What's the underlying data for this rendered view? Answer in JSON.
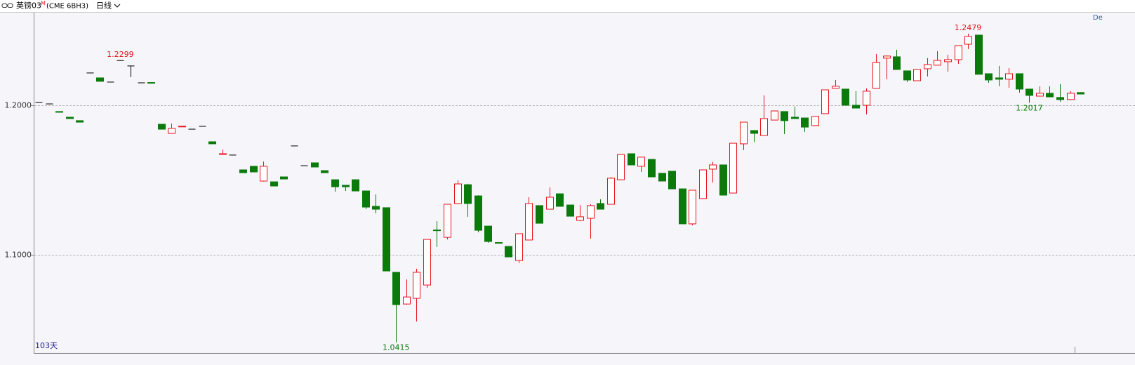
{
  "toolbar": {
    "name": "英镑03",
    "flag": "M",
    "code": "(CME 6BH3)",
    "period": "日线"
  },
  "chart_data": {
    "type": "candlestick",
    "corner_text": "De",
    "period_count": "103天",
    "up_color": "#e8141c",
    "down_color": "#0a7a0a",
    "flat_color": "#000000",
    "ylim": [
      1.0343,
      1.2624
    ],
    "yticks": [
      {
        "value": 1.1,
        "label": "1.1000"
      },
      {
        "value": 1.2,
        "label": "1.2000"
      }
    ],
    "grid": true,
    "annotations": [
      1.2299,
      1.2479,
      1.2017,
      1.0415
    ],
    "open": [
      1.2019,
      1.2009,
      1.1958,
      1.192,
      1.1897,
      1.2216,
      1.2183,
      1.2155,
      1.2299,
      1.2263,
      1.215,
      1.2152,
      1.1873,
      1.1812,
      1.1857,
      1.184,
      1.1859,
      1.1756,
      1.1674,
      1.1667,
      1.1568,
      1.1592,
      1.1493,
      1.1488,
      1.1521,
      1.1728,
      1.1596,
      1.1615,
      1.1563,
      1.1502,
      1.1465,
      1.1502,
      1.1427,
      1.1324,
      1.1315,
      1.0883,
      1.0671,
      1.0709,
      1.0798,
      1.1166,
      1.1117,
      1.1343,
      1.1469,
      1.1394,
      1.1192,
      1.1082,
      1.1056,
      1.0962,
      1.1099,
      1.1329,
      1.1305,
      1.1408,
      1.1333,
      1.123,
      1.1244,
      1.1343,
      1.1338,
      1.1502,
      1.1676,
      1.1592,
      1.1638,
      1.1545,
      1.1559,
      1.1441,
      1.1207,
      1.1376,
      1.1573,
      1.1601,
      1.1413,
      1.1742,
      1.1831,
      1.1798,
      1.1901,
      1.1958,
      1.192,
      1.1915,
      1.1864,
      1.1944,
      1.2113,
      1.2108,
      1.2,
      1.2,
      1.2113,
      1.2315,
      1.2324,
      1.223,
      1.2164,
      1.2244,
      1.2268,
      1.2291,
      1.2305,
      1.2408,
      1.2469,
      1.2211,
      1.2183,
      1.2174,
      1.2211,
      1.2108,
      1.2061,
      1.208,
      1.2052,
      1.2038,
      1.2085
    ],
    "high": [
      1.202,
      1.201,
      1.1959,
      1.1921,
      1.1898,
      1.2216,
      1.2185,
      1.2155,
      1.2299,
      1.2263,
      1.215,
      1.2153,
      1.1875,
      1.1878,
      1.1861,
      1.184,
      1.1859,
      1.1757,
      1.1704,
      1.1667,
      1.157,
      1.1594,
      1.1624,
      1.149,
      1.1523,
      1.1728,
      1.1596,
      1.1617,
      1.1565,
      1.1504,
      1.1465,
      1.1504,
      1.1429,
      1.1404,
      1.1317,
      1.0885,
      1.0836,
      1.0906,
      1.1103,
      1.1225,
      1.134,
      1.1498,
      1.1475,
      1.1398,
      1.1194,
      1.1085,
      1.1058,
      1.1143,
      1.1385,
      1.1331,
      1.1451,
      1.141,
      1.1335,
      1.1333,
      1.1338,
      1.1371,
      1.152,
      1.1673,
      1.1678,
      1.1655,
      1.164,
      1.1547,
      1.1561,
      1.1443,
      1.1434,
      1.157,
      1.162,
      1.1603,
      1.1748,
      1.1889,
      1.1833,
      1.2066,
      1.1964,
      1.196,
      1.1991,
      1.1917,
      1.1927,
      1.2105,
      1.2169,
      1.211,
      1.2094,
      1.2113,
      1.2343,
      1.2334,
      1.2371,
      1.2232,
      1.2241,
      1.2315,
      1.2362,
      1.2338,
      1.2401,
      1.2479,
      1.247,
      1.2213,
      1.2263,
      1.2249,
      1.2213,
      1.211,
      1.2127,
      1.2127,
      1.2141,
      1.2094,
      1.2087
    ],
    "low": [
      1.2016,
      1.2008,
      1.1952,
      1.191,
      1.1886,
      1.2216,
      1.2158,
      1.2155,
      1.2299,
      1.2188,
      1.215,
      1.2147,
      1.1838,
      1.181,
      1.1856,
      1.184,
      1.1859,
      1.1741,
      1.1672,
      1.1667,
      1.1547,
      1.1552,
      1.149,
      1.1458,
      1.1505,
      1.1728,
      1.1596,
      1.1585,
      1.1547,
      1.1423,
      1.1427,
      1.1425,
      1.1305,
      1.1277,
      1.089,
      1.0415,
      1.0667,
      1.0554,
      1.0779,
      1.1052,
      1.1103,
      1.134,
      1.1254,
      1.115,
      1.108,
      1.1075,
      1.0984,
      1.0944,
      1.1097,
      1.1209,
      1.1303,
      1.1322,
      1.1256,
      1.1225,
      1.1108,
      1.1303,
      1.1336,
      1.15,
      1.1599,
      1.1554,
      1.1519,
      1.1491,
      1.1439,
      1.1205,
      1.1197,
      1.1374,
      1.1484,
      1.1397,
      1.1411,
      1.17,
      1.1756,
      1.1796,
      1.1899,
      1.1808,
      1.1909,
      1.1822,
      1.1862,
      1.1942,
      1.2111,
      1.1998,
      1.1979,
      1.1939,
      1.2111,
      1.2174,
      1.2237,
      1.2155,
      1.2162,
      1.2192,
      1.2266,
      1.2225,
      1.2277,
      1.2376,
      1.2205,
      1.215,
      1.2127,
      1.2117,
      1.2085,
      1.2017,
      1.2059,
      1.2054,
      1.2023,
      1.2036,
      1.2073
    ],
    "close": [
      1.2019,
      1.2009,
      1.1953,
      1.1911,
      1.1887,
      1.2216,
      1.216,
      1.2155,
      1.2299,
      1.2263,
      1.215,
      1.2148,
      1.184,
      1.1845,
      1.186,
      1.184,
      1.1859,
      1.1742,
      1.1676,
      1.1667,
      1.1549,
      1.1554,
      1.1592,
      1.146,
      1.1507,
      1.1728,
      1.1596,
      1.1587,
      1.1549,
      1.1455,
      1.1455,
      1.1427,
      1.1319,
      1.1305,
      1.0892,
      1.0667,
      1.0718,
      1.0883,
      1.1103,
      1.1164,
      1.1338,
      1.1474,
      1.1343,
      1.1164,
      1.1089,
      1.1078,
      1.0986,
      1.1141,
      1.1343,
      1.1211,
      1.1385,
      1.1324,
      1.1258,
      1.1254,
      1.1329,
      1.1305,
      1.1512,
      1.1671,
      1.1601,
      1.1653,
      1.1521,
      1.1493,
      1.1441,
      1.1207,
      1.1432,
      1.1568,
      1.1601,
      1.1399,
      1.1746,
      1.1887,
      1.1812,
      1.1911,
      1.1962,
      1.1897,
      1.1911,
      1.1854,
      1.1925,
      1.2103,
      1.2127,
      1.2,
      1.1981,
      1.2094,
      1.2286,
      1.2329,
      1.2239,
      1.2169,
      1.2239,
      1.2272,
      1.23,
      1.2305,
      1.2399,
      1.246,
      1.2207,
      1.2169,
      1.2174,
      1.2211,
      1.2108,
      1.2066,
      1.208,
      1.2056,
      1.2038,
      1.208,
      1.2075
    ]
  }
}
